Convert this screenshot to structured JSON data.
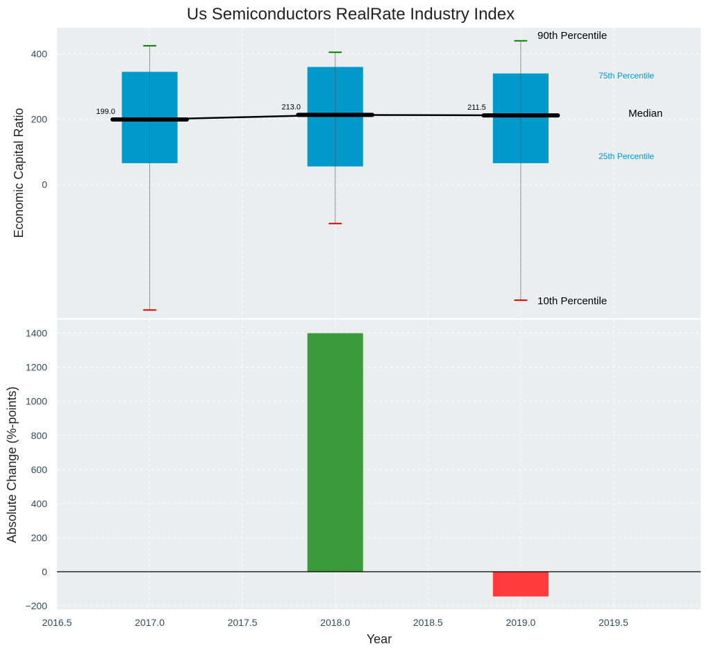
{
  "chart_data": [
    {
      "type": "box",
      "title": "Us Semiconductors RealRate Industry Index",
      "ylabel": "Economic Capital Ratio",
      "ylim": [
        -410,
        480
      ],
      "yticks": [
        0,
        200,
        400
      ],
      "categories": [
        2017,
        2018,
        2019
      ],
      "boxes": [
        {
          "x": 2017,
          "p10": -385,
          "p25": 65,
          "median": 199.0,
          "p75": 345,
          "p90": 425
        },
        {
          "x": 2018,
          "p10": -120,
          "p25": 55,
          "median": 213.0,
          "p75": 360,
          "p90": 405
        },
        {
          "x": 2019,
          "p10": -355,
          "p25": 65,
          "median": 211.5,
          "p75": 340,
          "p90": 440
        }
      ],
      "median_labels": [
        "199.0",
        "213.0",
        "211.5"
      ],
      "legend_labels": {
        "p90": "90th Percentile",
        "p75": "75th Percentile",
        "median": "Median",
        "p25": "25th Percentile",
        "p10": "10th Percentile"
      },
      "colors": {
        "box": "#0099cc",
        "whisker_top": "#008000",
        "whisker_bottom": "#dd0000",
        "median": "#000000"
      },
      "grid": true
    },
    {
      "type": "bar",
      "xlabel": "Year",
      "ylabel": "Absolute Change (%-points)",
      "xlim": [
        2016.5,
        2019.97
      ],
      "xticks": [
        "2016.5",
        "2017.0",
        "2017.5",
        "2018.0",
        "2018.5",
        "2019.0",
        "2019.5"
      ],
      "ylim": [
        -220,
        1480
      ],
      "yticks": [
        "−200",
        "0",
        "200",
        "400",
        "600",
        "800",
        "1000",
        "1200",
        "1400"
      ],
      "x": [
        2018,
        2019
      ],
      "values": [
        1400,
        -145
      ],
      "colors": {
        "positive": "#3b9b3b",
        "negative": "#ff3b3b"
      },
      "grid": true
    }
  ]
}
